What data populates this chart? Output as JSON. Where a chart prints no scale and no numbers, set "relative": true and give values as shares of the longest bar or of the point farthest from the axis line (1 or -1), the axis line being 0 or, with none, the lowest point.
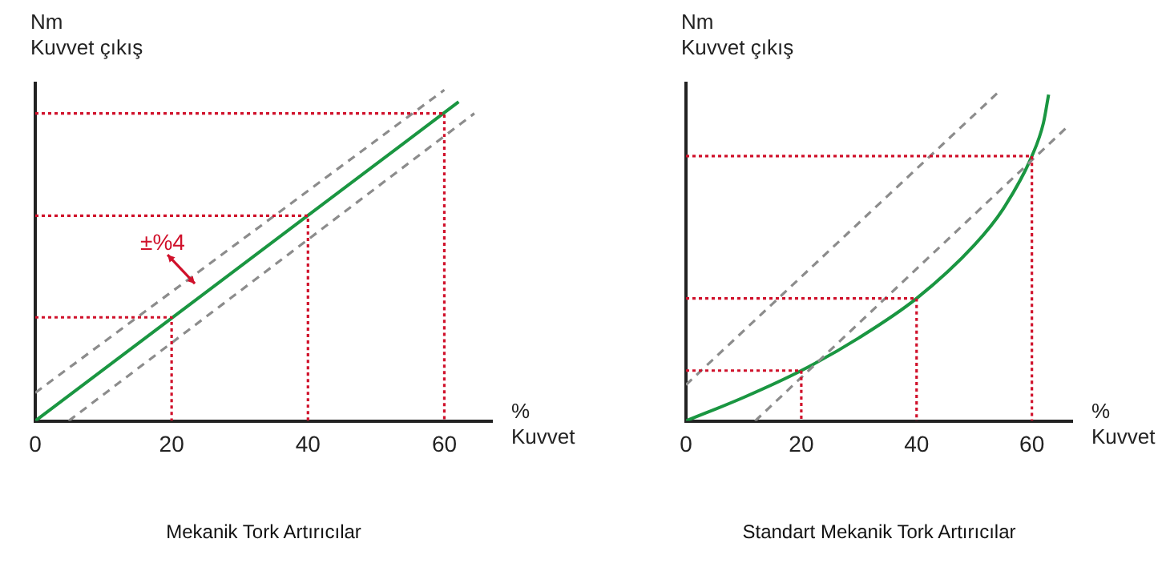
{
  "chart_data": [
    {
      "type": "line",
      "title": "Mekanik Tork Artırıcılar",
      "xlabel": "%\nKuvvet",
      "ylabel": "Nm\nKuvvet çıkış",
      "relative": true,
      "xlim": [
        0,
        67
      ],
      "xticks": [
        0,
        20,
        40,
        60
      ],
      "grid": false,
      "legend": false,
      "marker": "none",
      "annotations": [
        "±%4"
      ],
      "series": [
        {
          "color": "#d0112b",
          "line_style": "dotted",
          "x": [
            0,
            60,
            60
          ],
          "values": [
            0.929,
            0.929,
            0
          ]
        },
        {
          "color": "#d0112b",
          "line_style": "dotted",
          "x": [
            0,
            40,
            40
          ],
          "values": [
            0.62,
            0.62,
            0
          ]
        },
        {
          "color": "#d0112b",
          "line_style": "dotted",
          "x": [
            0,
            20,
            20
          ],
          "values": [
            0.313,
            0.313,
            0
          ]
        },
        {
          "color": "#8c8c8c",
          "line_style": "dashed",
          "x": [
            0,
            60
          ],
          "values": [
            0.085,
            1
          ]
        },
        {
          "color": "#8c8c8c",
          "line_style": "dashed",
          "x": [
            4.9,
            64.4
          ],
          "values": [
            0,
            0.929
          ]
        },
        {
          "color": "#1a9641",
          "line_style": "solid",
          "x": [
            0,
            62.1
          ],
          "values": [
            0,
            0.964
          ]
        }
      ]
    },
    {
      "type": "line",
      "title": "Standart Mekanik Tork Artırıcılar",
      "xlabel": "%\nKuvvet",
      "ylabel": "Nm\nKuvvet çıkış",
      "relative": true,
      "xlim": [
        0,
        67
      ],
      "xticks": [
        0,
        20,
        40,
        60
      ],
      "grid": false,
      "legend": false,
      "marker": "none",
      "series": [
        {
          "color": "#d0112b",
          "line_style": "dotted",
          "x": [
            0,
            60,
            60
          ],
          "values": [
            0.8,
            0.8,
            0
          ]
        },
        {
          "color": "#d0112b",
          "line_style": "dotted",
          "x": [
            0,
            40,
            40
          ],
          "values": [
            0.37,
            0.37,
            0
          ]
        },
        {
          "color": "#d0112b",
          "line_style": "dotted",
          "x": [
            0,
            20,
            20
          ],
          "values": [
            0.152,
            0.152,
            0
          ]
        },
        {
          "color": "#8c8c8c",
          "line_style": "dashed",
          "x": [
            0,
            54.6
          ],
          "values": [
            0.109,
            1
          ]
        },
        {
          "color": "#8c8c8c",
          "line_style": "dashed",
          "x": [
            12,
            66.3
          ],
          "values": [
            0,
            0.891
          ]
        },
        {
          "color": "#1a9641",
          "line_style": "solid",
          "x": [
            0,
            10,
            20,
            30,
            40,
            50,
            55,
            60,
            62,
            62.9
          ],
          "values": [
            0,
            0.071,
            0.152,
            0.251,
            0.37,
            0.531,
            0.64,
            0.8,
            0.9,
            0.986
          ]
        }
      ]
    }
  ]
}
